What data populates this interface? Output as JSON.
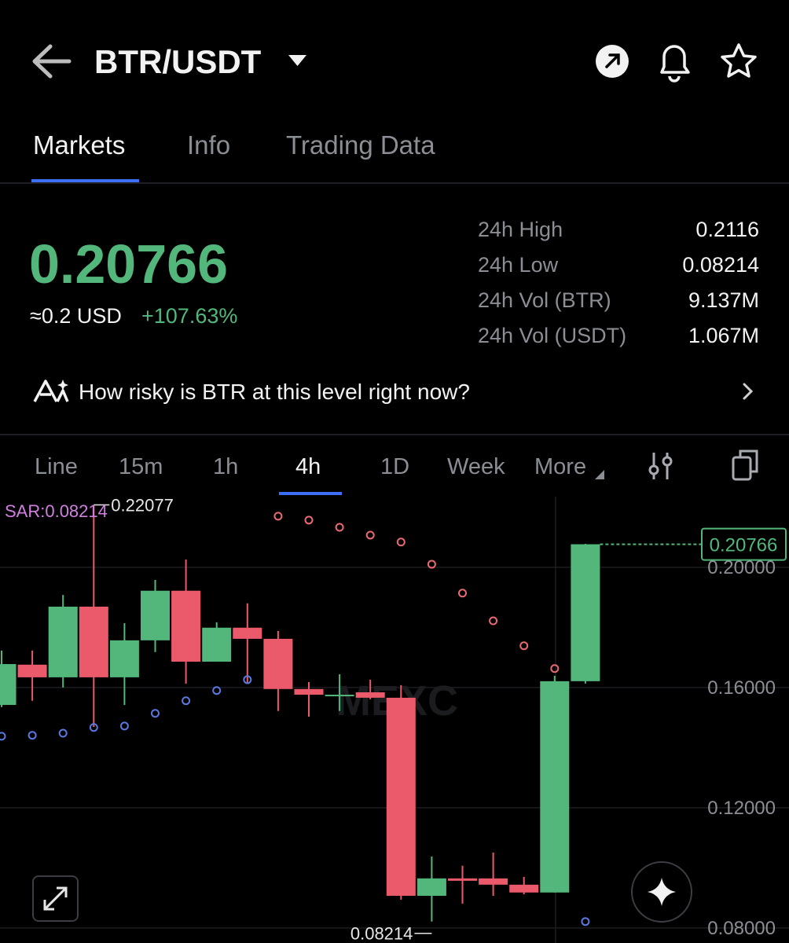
{
  "header": {
    "title": "BTR/USDT"
  },
  "tabs": [
    "Markets",
    "Info",
    "Trading Data"
  ],
  "price": {
    "last": "0.20766",
    "usd": "≈0.2 USD",
    "change": "+107.63%"
  },
  "stats": [
    {
      "label": "24h High",
      "value": "0.2116"
    },
    {
      "label": "24h Low",
      "value": "0.08214"
    },
    {
      "label": "24h Vol (BTR)",
      "value": "9.137M"
    },
    {
      "label": "24h Vol (USDT)",
      "value": "1.067M"
    }
  ],
  "risk_prompt": "How risky is BTR at this level right now?",
  "intervals": [
    "Line",
    "15m",
    "1h",
    "4h",
    "1D",
    "Week",
    "More"
  ],
  "chart_data": {
    "type": "candlestick",
    "watermark": "MEXC",
    "up_color": "#53b77c",
    "down_color": "#ea5a6b",
    "open": [
      0.1542,
      0.1676,
      0.1634,
      0.1869,
      0.1634,
      0.1757,
      0.1922,
      0.1686,
      0.1799,
      0.1762,
      0.1595,
      0.1571,
      0.1584,
      0.1566,
      0.0907,
      0.0965,
      0.0965,
      0.0944,
      0.0918,
      0.1621
    ],
    "high": [
      0.1723,
      0.1723,
      0.1908,
      0.22077,
      0.1814,
      0.1958,
      0.2026,
      0.1817,
      0.188,
      0.1788,
      0.1618,
      0.1644,
      0.1626,
      0.1608,
      0.1038,
      0.1007,
      0.1051,
      0.097,
      0.1639,
      0.2078
    ],
    "low": [
      0.1535,
      0.1556,
      0.16,
      0.1469,
      0.1542,
      0.1718,
      0.1613,
      0.1686,
      0.1613,
      0.1522,
      0.1503,
      0.1522,
      0.1561,
      0.0894,
      0.08214,
      0.0881,
      0.0907,
      0.0912,
      0.0918,
      0.1613
    ],
    "close": [
      0.1678,
      0.1634,
      0.1869,
      0.1634,
      0.1757,
      0.1922,
      0.1686,
      0.1799,
      0.1762,
      0.1595,
      0.1576,
      0.1576,
      0.1566,
      0.0907,
      0.0965,
      0.0957,
      0.0944,
      0.0918,
      0.1621,
      0.20766
    ],
    "sar": {
      "label": "SAR:0.08214",
      "up_color": "#5b78e0",
      "down_color": "#ea6a72",
      "values": [
        0.1438,
        0.1441,
        0.1448,
        0.1467,
        0.1472,
        0.1514,
        0.1556,
        0.159,
        0.1626,
        0.217,
        0.2157,
        0.2133,
        0.2107,
        0.2084,
        0.201,
        0.1914,
        0.1822,
        0.1739,
        0.1663,
        0.08214
      ]
    },
    "ylim": [
      0.075,
      0.2235
    ],
    "yticks": [
      {
        "value": 0.08,
        "label": "0.08000"
      },
      {
        "value": 0.12,
        "label": "0.12000"
      },
      {
        "value": 0.16,
        "label": "0.16000"
      },
      {
        "value": 0.2,
        "label": "0.20000"
      }
    ],
    "grid": true
  }
}
